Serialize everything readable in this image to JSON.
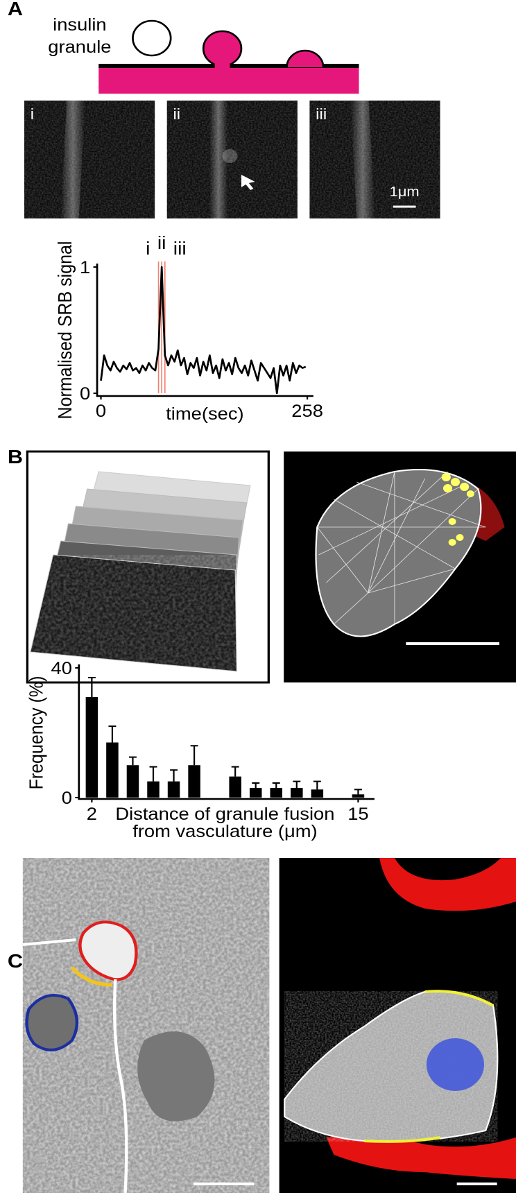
{
  "panel_labels": [
    "A",
    "B",
    "C"
  ],
  "diagram": {
    "label": [
      "insulin",
      "granule"
    ]
  },
  "micrographs": {
    "labels": [
      "i",
      "ii",
      "iii"
    ],
    "scale": "1μm"
  },
  "chart_data": [
    {
      "type": "line",
      "ylabel": "Normalised SRB signal",
      "xlabel": "time(sec)",
      "x": [
        0,
        4,
        8,
        12,
        16,
        20,
        24,
        28,
        32,
        36,
        40,
        44,
        48,
        52,
        56,
        60,
        64,
        68,
        72,
        76,
        80,
        84,
        88,
        92,
        96,
        100,
        104,
        108,
        112,
        116,
        120,
        124,
        128,
        132,
        136,
        140,
        144,
        148,
        152,
        156,
        160,
        164,
        168,
        172,
        176,
        180,
        184,
        188,
        192,
        196,
        200,
        204,
        208,
        212,
        216,
        220,
        224,
        228,
        232,
        236,
        240,
        244,
        248,
        252,
        256
      ],
      "values": [
        0.1,
        0.3,
        0.22,
        0.18,
        0.25,
        0.2,
        0.17,
        0.22,
        0.19,
        0.24,
        0.18,
        0.2,
        0.16,
        0.22,
        0.18,
        0.24,
        0.2,
        0.18,
        0.35,
        1.0,
        0.3,
        0.22,
        0.3,
        0.25,
        0.34,
        0.22,
        0.28,
        0.15,
        0.24,
        0.2,
        0.28,
        0.14,
        0.25,
        0.18,
        0.3,
        0.16,
        0.22,
        0.12,
        0.27,
        0.18,
        0.24,
        0.15,
        0.28,
        0.2,
        0.16,
        0.22,
        0.14,
        0.26,
        0.18,
        0.1,
        0.24,
        0.2,
        0.16,
        0.12,
        0.2,
        0.0,
        0.22,
        0.14,
        0.22,
        0.1,
        0.24,
        0.16,
        0.22,
        0.2,
        0.21
      ],
      "color": "#000000",
      "markers": [
        {
          "label": "i",
          "x": 72
        },
        {
          "label": "ii",
          "x": 76
        },
        {
          "label": "iii",
          "x": 80
        }
      ],
      "marker_color": "#f08070",
      "xlim": [
        0,
        258
      ],
      "xticks": [
        0,
        258
      ],
      "ylim": [
        0,
        1
      ],
      "yticks": [
        0,
        1
      ]
    },
    {
      "type": "bar",
      "ylabel": "Frequency (%)",
      "xlabel": [
        "Distance of granule fusion",
        "from vasculature (μm)"
      ],
      "x": [
        2,
        3,
        4,
        5,
        6,
        7,
        9,
        10,
        11,
        12,
        13,
        15
      ],
      "values": [
        31,
        17,
        10,
        5,
        5,
        10,
        6.5,
        3,
        3,
        3,
        2.5,
        1
      ],
      "errors": [
        6,
        5,
        2.5,
        4.5,
        3.5,
        6,
        3,
        1.5,
        1.5,
        2,
        2.5,
        1.5
      ],
      "color": "#000000",
      "xlim": [
        1.5,
        15.5
      ],
      "xticks": [
        2,
        15
      ],
      "ylim": [
        0,
        40
      ],
      "yticks": [
        0,
        40
      ]
    }
  ]
}
